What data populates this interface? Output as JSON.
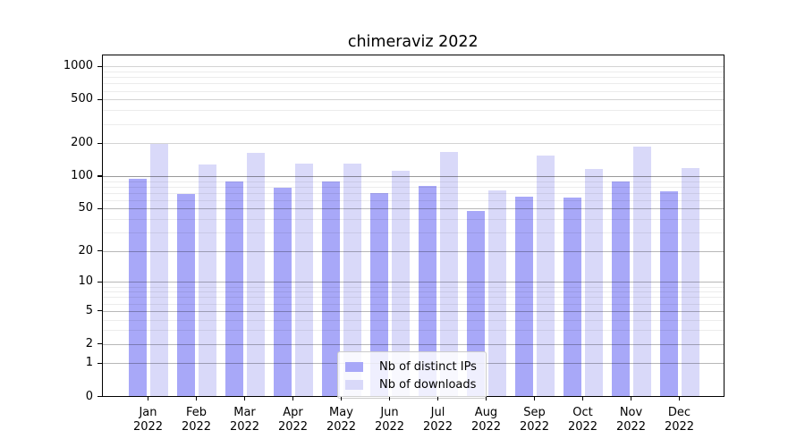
{
  "chart_data": {
    "type": "bar",
    "title": "chimeraviz 2022",
    "categories": [
      "Jan 2022",
      "Feb 2022",
      "Mar 2022",
      "Apr 2022",
      "May 2022",
      "Jun 2022",
      "Jul 2022",
      "Aug 2022",
      "Sep 2022",
      "Oct 2022",
      "Nov 2022",
      "Dec 2022"
    ],
    "series": [
      {
        "name": "Nb of distinct IPs",
        "color": "#a8a8f8",
        "values": [
          95,
          68,
          90,
          78,
          89,
          70,
          81,
          48,
          65,
          63,
          90,
          72
        ]
      },
      {
        "name": "Nb of downloads",
        "color": "#d9d9f9",
        "values": [
          197,
          127,
          163,
          129,
          129,
          113,
          165,
          74,
          154,
          116,
          187,
          119
        ]
      }
    ],
    "xlabel": "",
    "ylabel": "",
    "yscale": "log1p",
    "y_ticks": [
      0,
      1,
      2,
      5,
      10,
      20,
      50,
      100,
      200,
      500,
      1000
    ],
    "ylim": [
      0,
      1290
    ],
    "grid": true,
    "legend_position": "lower center"
  }
}
